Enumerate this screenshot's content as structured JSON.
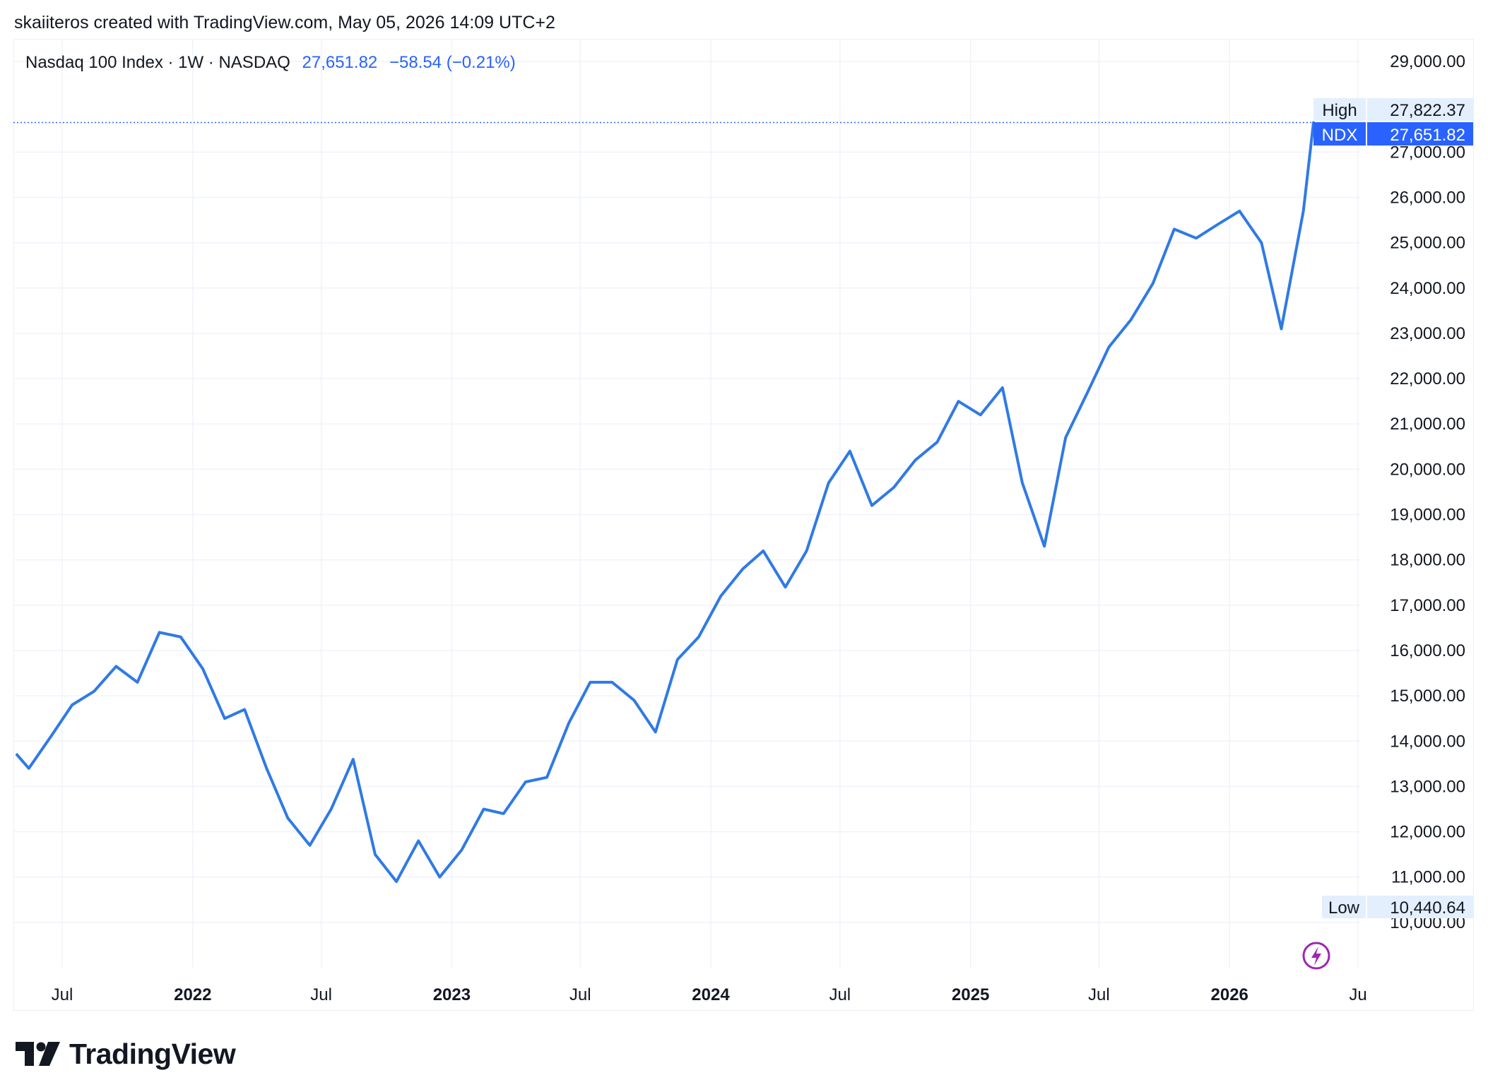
{
  "caption": "skaiiteros created with TradingView.com, May 05, 2026 14:09 UTC+2",
  "legend": {
    "symbol_line": "Nasdaq 100 Index · 1W · NASDAQ",
    "price": "27,651.82",
    "change": "−58.54 (−0.21%)"
  },
  "tags": {
    "high_label": "High",
    "high_value": "27,822.37",
    "ndx_label": "NDX",
    "ndx_value": "27,651.82",
    "low_label": "Low",
    "low_value": "10,440.64"
  },
  "footer": {
    "logo_text": "TradingView"
  },
  "colors": {
    "line": "#2f7ae5",
    "accent": "#2962ff",
    "tag_bg": "#e3effd",
    "grid": "#f0f3fa",
    "lightning": "#9c27b0"
  },
  "icons": {
    "lightning": "lightning-icon",
    "logo": "tradingview-logo-icon"
  },
  "chart_data": {
    "type": "line",
    "title": "",
    "xlabel": "",
    "ylabel": "",
    "x_tick_labels": [
      "Jul",
      "2022",
      "Jul",
      "2023",
      "Jul",
      "2024",
      "Jul",
      "2025",
      "Jul",
      "2026",
      "Ju"
    ],
    "y_tick_labels": [
      "10,000.00",
      "11,000.00",
      "12,000.00",
      "13,000.00",
      "14,000.00",
      "15,000.00",
      "16,000.00",
      "17,000.00",
      "18,000.00",
      "19,000.00",
      "20,000.00",
      "21,000.00",
      "22,000.00",
      "23,000.00",
      "24,000.00",
      "25,000.00",
      "26,000.00",
      "27,000.00",
      "29,000.00"
    ],
    "ylim": [
      9000,
      29500
    ],
    "grid": true,
    "series": [
      {
        "name": "NDX",
        "x": [
          "2021-04",
          "2021-05",
          "2021-06",
          "2021-07",
          "2021-08",
          "2021-09",
          "2021-10",
          "2021-11",
          "2021-12",
          "2022-01",
          "2022-02",
          "2022-03",
          "2022-04",
          "2022-05",
          "2022-06",
          "2022-07",
          "2022-08",
          "2022-09",
          "2022-10",
          "2022-11",
          "2022-12",
          "2023-01",
          "2023-02",
          "2023-03",
          "2023-04",
          "2023-05",
          "2023-06",
          "2023-07",
          "2023-08",
          "2023-09",
          "2023-10",
          "2023-11",
          "2023-12",
          "2024-01",
          "2024-02",
          "2024-03",
          "2024-04",
          "2024-05",
          "2024-06",
          "2024-07",
          "2024-08",
          "2024-09",
          "2024-10",
          "2024-11",
          "2024-12",
          "2025-01",
          "2025-02",
          "2025-03",
          "2025-04",
          "2025-05",
          "2025-06",
          "2025-07",
          "2025-08",
          "2025-09",
          "2025-10",
          "2025-11",
          "2025-12",
          "2026-01",
          "2026-02",
          "2026-03",
          "2026-04",
          "2026-05"
        ],
        "values": [
          13700,
          13400,
          14100,
          14800,
          15100,
          15650,
          15300,
          16400,
          16300,
          15600,
          14500,
          14700,
          13400,
          12300,
          11700,
          12500,
          13600,
          11500,
          10900,
          11800,
          11000,
          11600,
          12500,
          12400,
          13100,
          13200,
          14400,
          15300,
          15300,
          14900,
          14200,
          15800,
          16300,
          17200,
          17800,
          18200,
          17400,
          18200,
          19700,
          20400,
          19200,
          19600,
          20200,
          20600,
          21500,
          21200,
          21800,
          19700,
          18300,
          20700,
          21700,
          22700,
          23300,
          24100,
          25300,
          25100,
          25400,
          25700,
          25000,
          23100,
          25700,
          27651.82
        ]
      }
    ]
  }
}
